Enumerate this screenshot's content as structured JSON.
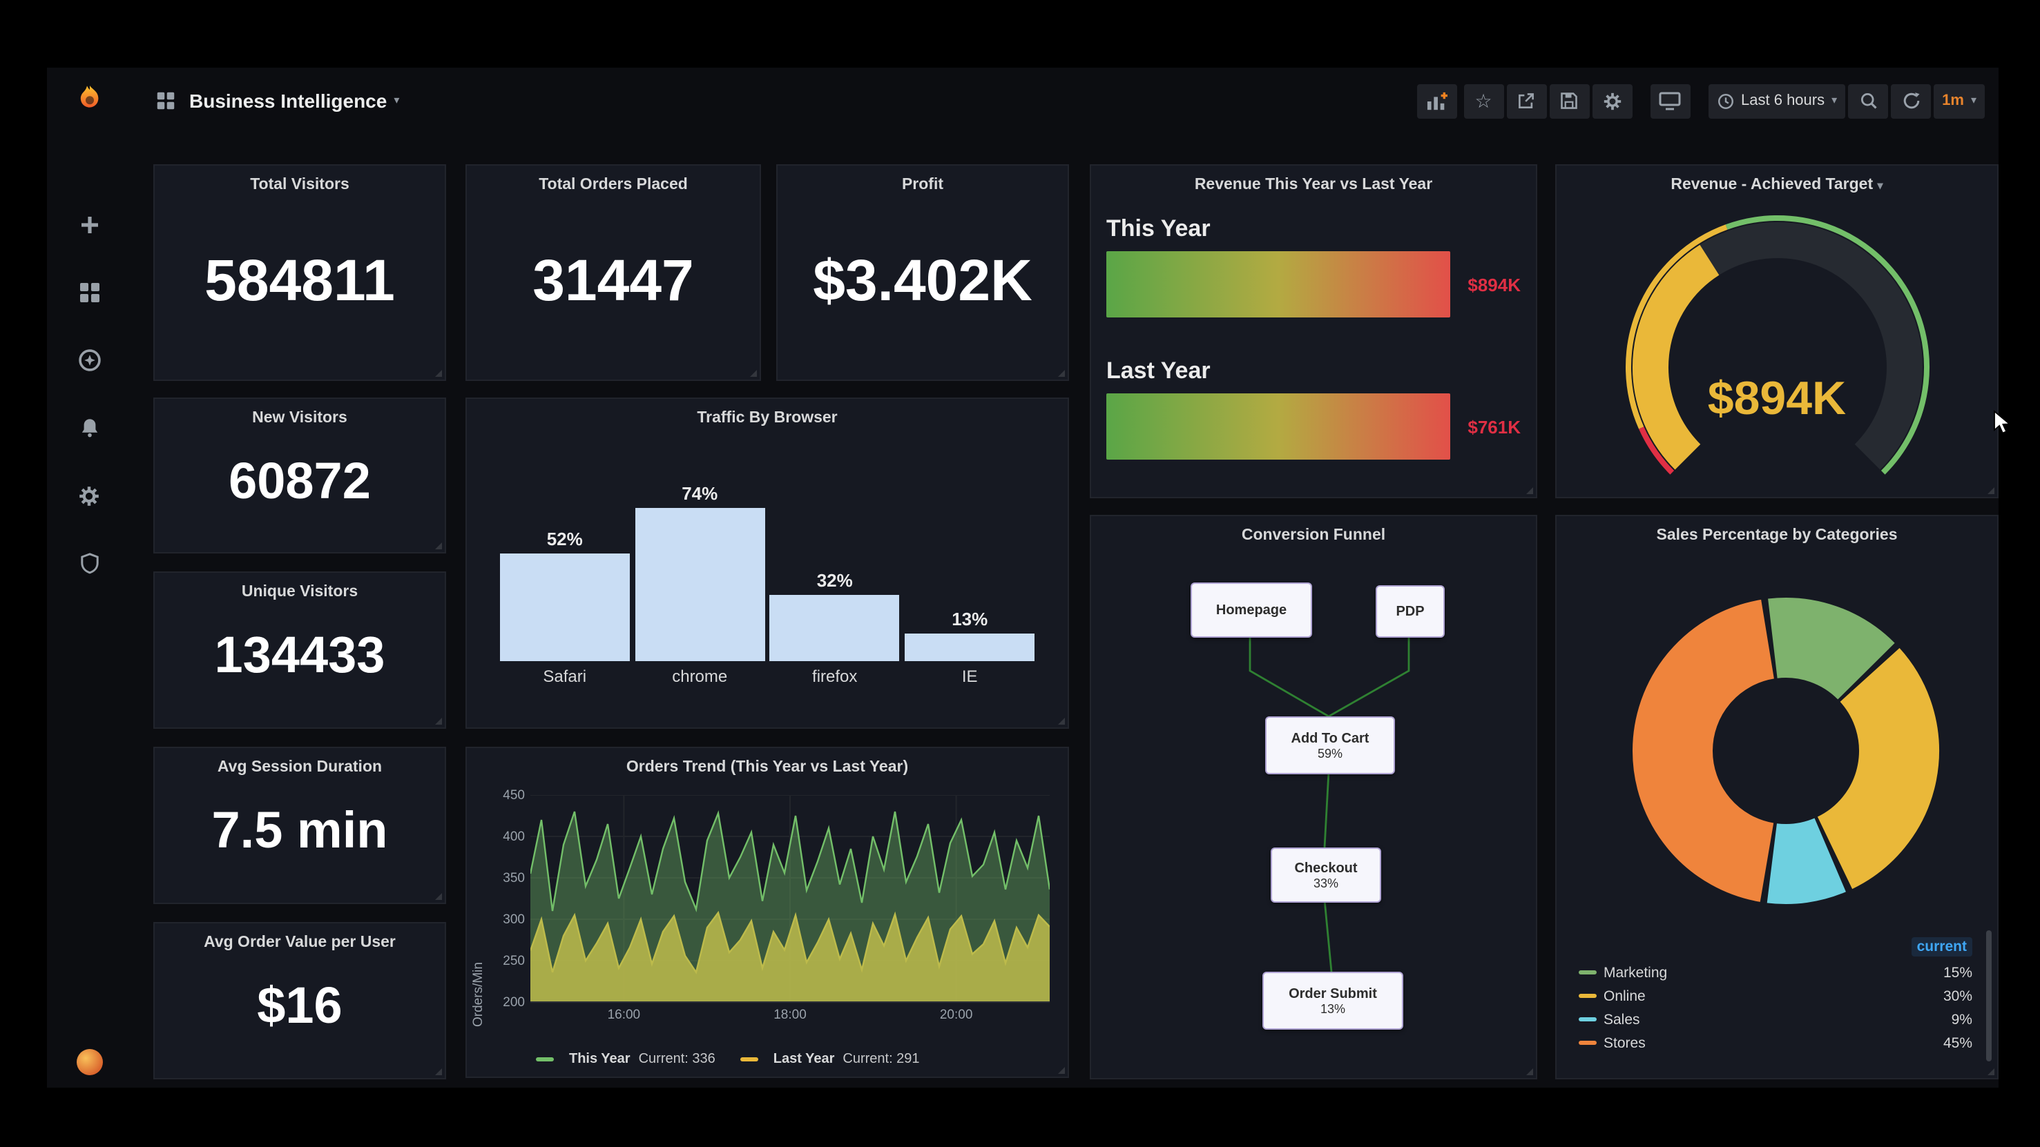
{
  "header": {
    "title": "Business Intelligence",
    "time_range": "Last 6 hours",
    "refresh_interval": "1m",
    "toolbar_icons": [
      "add-panel",
      "star",
      "share",
      "save",
      "settings-gear",
      "cycle-view-monitor",
      "clock",
      "zoom-out-magnifier",
      "refresh"
    ]
  },
  "sidebar": {
    "icons": [
      "grafana-logo",
      "plus-create",
      "dashboards-grid",
      "explore-compass",
      "alerting-bell",
      "configuration-gear",
      "server-admin-shield",
      "user-avatar"
    ]
  },
  "stats": {
    "total_visitors": {
      "title": "Total Visitors",
      "value": "584811"
    },
    "total_orders_placed": {
      "title": "Total Orders Placed",
      "value": "31447"
    },
    "profit": {
      "title": "Profit",
      "value": "$3.402K"
    },
    "new_visitors": {
      "title": "New Visitors",
      "value": "60872"
    },
    "unique_visitors": {
      "title": "Unique Visitors",
      "value": "134433"
    },
    "avg_session_duration": {
      "title": "Avg Session Duration",
      "value": "7.5 min"
    },
    "avg_order_value_per_user": {
      "title": "Avg Order Value per User",
      "value": "$16"
    }
  },
  "funnel": {
    "title": "Conversion Funnel",
    "nodes": [
      {
        "label": "Homepage",
        "pct": ""
      },
      {
        "label": "PDP",
        "pct": ""
      },
      {
        "label": "Add To Cart",
        "pct": "59%"
      },
      {
        "label": "Checkout",
        "pct": "33%"
      },
      {
        "label": "Order Submit",
        "pct": "13%"
      }
    ],
    "connector_color": "#2f8132"
  },
  "chart_data": [
    {
      "id": "traffic_by_browser",
      "type": "bar",
      "title": "Traffic By Browser",
      "categories": [
        "Safari",
        "chrome",
        "firefox",
        "IE"
      ],
      "values": [
        52,
        74,
        32,
        13
      ],
      "unit": "%",
      "ylim": [
        0,
        80
      ],
      "bar_color": "#c9ddf4"
    },
    {
      "id": "orders_trend",
      "type": "line",
      "title": "Orders Trend (This Year vs Last Year)",
      "ylabel": "Orders/Min",
      "ylim": [
        200,
        450
      ],
      "yticks": [
        200,
        250,
        300,
        350,
        400,
        450
      ],
      "xticks": [
        {
          "label": "16:00",
          "pos": 0.18
        },
        {
          "label": "18:00",
          "pos": 0.5
        },
        {
          "label": "20:00",
          "pos": 0.82
        }
      ],
      "grid": true,
      "legend_position": "bottom",
      "series": [
        {
          "name": "This Year",
          "color": "#73bf69",
          "current": 336,
          "current_text": "Current: 336",
          "values": [
            355,
            420,
            310,
            390,
            430,
            340,
            372,
            415,
            325,
            362,
            400,
            330,
            385,
            422,
            345,
            312,
            395,
            428,
            350,
            375,
            405,
            322,
            390,
            356,
            425,
            335,
            370,
            410,
            342,
            385,
            320,
            400,
            360,
            430,
            345,
            376,
            415,
            332,
            392,
            420,
            352,
            366,
            405,
            336,
            395,
            362,
            425,
            336
          ]
        },
        {
          "name": "Last Year",
          "color": "#eab839",
          "current": 291,
          "current_text": "Current: 291",
          "values": [
            262,
            300,
            236,
            280,
            305,
            250,
            271,
            295,
            241,
            266,
            300,
            246,
            285,
            304,
            256,
            236,
            290,
            308,
            260,
            275,
            298,
            241,
            285,
            263,
            305,
            248,
            272,
            300,
            252,
            283,
            239,
            295,
            268,
            306,
            250,
            278,
            302,
            243,
            288,
            304,
            258,
            270,
            298,
            247,
            290,
            266,
            305,
            291
          ]
        }
      ]
    },
    {
      "id": "revenue_this_vs_last",
      "type": "bar",
      "orientation": "horizontal",
      "title": "Revenue This Year vs Last Year",
      "categories": [
        "This Year",
        "Last Year"
      ],
      "values": [
        894,
        761
      ],
      "unit": "K",
      "display_values": [
        "$894K",
        "$761K"
      ],
      "value_color": "#e02f44",
      "bar_gradient": [
        "#5aa647",
        "#b3aa42",
        "#e25049"
      ]
    },
    {
      "id": "revenue_achieved_target",
      "type": "gauge",
      "title": "Revenue - Achieved Target",
      "value": 894,
      "display_value": "$894K",
      "fill_percent": 38,
      "value_color": "#eab839",
      "thresholds": [
        {
          "color": "#e02f44",
          "from_deg": -135,
          "to_deg": -114
        },
        {
          "color": "#eab839",
          "from_deg": -114,
          "to_deg": -20
        },
        {
          "color": "#73bf69",
          "from_deg": -20,
          "to_deg": 135
        }
      ]
    },
    {
      "id": "sales_percentage_by_categories",
      "type": "pie",
      "title": "Sales Percentage by Categories",
      "legend_header": "current",
      "labels": [
        "Marketing",
        "Online",
        "Sales",
        "Stores"
      ],
      "values": [
        15,
        30,
        9,
        45
      ],
      "unit": "%",
      "colors": [
        "#7eb26d",
        "#eab839",
        "#6ed0e0",
        "#ef843c"
      ],
      "start_angle_deg": -8
    }
  ]
}
